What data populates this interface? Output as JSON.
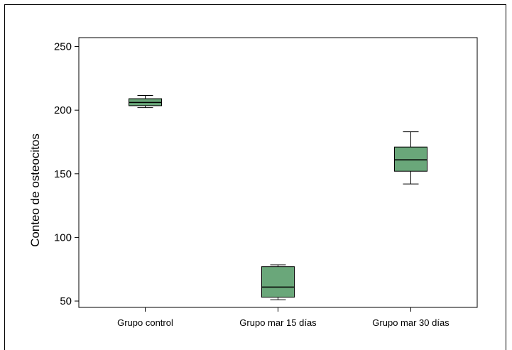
{
  "chart_data": {
    "type": "box",
    "title": "",
    "xlabel": "",
    "ylabel": "Conteo de osteocitos",
    "ylim": [
      45,
      257
    ],
    "yticks": [
      50,
      100,
      150,
      200,
      250
    ],
    "grid": false,
    "legend": "none",
    "box_color": "#6aa77a",
    "categories": [
      "Grupo control",
      "Grupo mar 15 días",
      "Grupo mar 30 días"
    ],
    "boxes": [
      {
        "category": "Grupo control",
        "whisker_low": 202,
        "q1": 203.5,
        "median": 206,
        "q3": 209,
        "whisker_high": 211.5
      },
      {
        "category": "Grupo mar 15 días",
        "whisker_low": 51,
        "q1": 53,
        "median": 61,
        "q3": 77,
        "whisker_high": 78.5
      },
      {
        "category": "Grupo mar 30 días",
        "whisker_low": 142,
        "q1": 152,
        "median": 161,
        "q3": 171,
        "whisker_high": 183
      }
    ]
  }
}
